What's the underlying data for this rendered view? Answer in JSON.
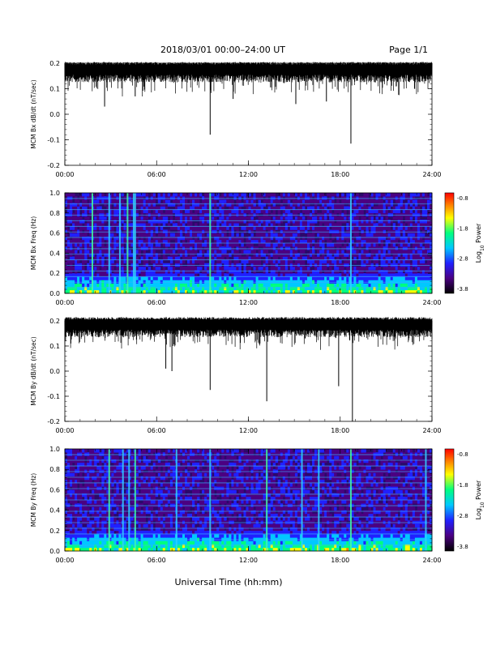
{
  "header": {
    "title": "2018/03/01   00:00–24:00 UT",
    "page": "Page 1/1"
  },
  "xaxis": {
    "label": "Universal Time (hh:mm)",
    "ticks": [
      "00:00",
      "06:00",
      "12:00",
      "18:00",
      "24:00"
    ]
  },
  "colorbar": {
    "label_prefix": "Log",
    "label_sub": "10",
    "label_suffix": " Power",
    "ticks": [
      "-0.8",
      "-1.8",
      "-2.8",
      "-3.8"
    ],
    "colors": [
      "#000000",
      "#4b0082",
      "#2020ff",
      "#00c8ff",
      "#00ff80",
      "#ffff00",
      "#ff8000",
      "#ff0000"
    ]
  },
  "chart_data": [
    {
      "type": "line",
      "ylabel": "MCM Bx dB/dt (nT/sec)",
      "xlim": [
        0,
        24
      ],
      "ylim": [
        -0.2,
        0.2
      ],
      "yticks": [
        "0.2",
        "0.1",
        "0.0",
        "-0.1",
        "-0.2"
      ],
      "baseline": 0.17,
      "spikes": [
        {
          "t": 2.6,
          "y": 0.03
        },
        {
          "t": 4.6,
          "y": 0.07
        },
        {
          "t": 9.5,
          "y": -0.08
        },
        {
          "t": 11.0,
          "y": 0.06
        },
        {
          "t": 15.1,
          "y": 0.04
        },
        {
          "t": 17.1,
          "y": 0.05
        },
        {
          "t": 18.7,
          "y": -0.115
        }
      ]
    },
    {
      "type": "heatmap",
      "ylabel": "MCM Bx Freq (Hz)",
      "xlim": [
        0,
        24
      ],
      "ylim": [
        0,
        1.0
      ],
      "yticks": [
        "1.0",
        "0.8",
        "0.6",
        "0.4",
        "0.2",
        "0.0"
      ],
      "zlim": [
        -3.8,
        -0.8
      ],
      "lines_hz": [
        0.0556,
        0.111,
        0.167,
        0.222,
        0.278,
        0.333,
        0.389,
        0.444,
        0.5,
        0.556,
        0.611,
        0.667,
        0.722,
        0.778,
        0.833,
        0.889,
        0.944
      ],
      "bright_times": [
        1.8,
        2.9,
        3.6,
        4.1,
        4.5,
        4.6,
        9.5,
        18.7
      ]
    },
    {
      "type": "line",
      "ylabel": "MCM By dB/dt (nT/sec)",
      "xlim": [
        0,
        24
      ],
      "ylim": [
        -0.2,
        0.2
      ],
      "yticks": [
        "0.2",
        "0.1",
        "0.0",
        "-0.1",
        "-0.2"
      ],
      "baseline": 0.18,
      "spikes": [
        {
          "t": 6.6,
          "y": 0.01
        },
        {
          "t": 7.0,
          "y": 0.0
        },
        {
          "t": 9.5,
          "y": -0.075
        },
        {
          "t": 13.2,
          "y": -0.12
        },
        {
          "t": 17.9,
          "y": -0.06
        },
        {
          "t": 18.8,
          "y": -0.2
        }
      ]
    },
    {
      "type": "heatmap",
      "ylabel": "MCM By Freq (Hz)",
      "xlim": [
        0,
        24
      ],
      "ylim": [
        0,
        1.0
      ],
      "yticks": [
        "1.0",
        "0.8",
        "0.6",
        "0.4",
        "0.2",
        "0.0"
      ],
      "zlim": [
        -3.8,
        -0.8
      ],
      "lines_hz": [
        0.0556,
        0.111,
        0.167,
        0.222,
        0.278,
        0.333,
        0.389,
        0.444,
        0.5,
        0.556,
        0.611,
        0.667,
        0.722,
        0.778,
        0.833,
        0.889,
        0.944
      ],
      "bright_times": [
        2.9,
        3.8,
        4.2,
        4.6,
        7.3,
        9.5,
        13.2,
        15.5,
        16.6,
        18.7,
        23.6
      ]
    }
  ]
}
